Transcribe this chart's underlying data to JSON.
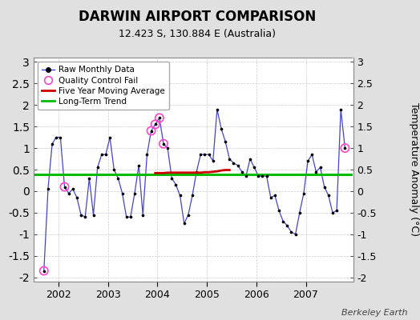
{
  "title": "DARWIN AIRPORT COMPARISON",
  "subtitle": "12.423 S, 130.884 E (Australia)",
  "ylabel": "Temperature Anomaly (°C)",
  "watermark": "Berkeley Earth",
  "ylim": [
    -2.1,
    3.1
  ],
  "xlim": [
    2001.5,
    2007.95
  ],
  "long_term_trend": 0.38,
  "bg_color": "#e0e0e0",
  "plot_bg_color": "#ffffff",
  "raw_line_color": "#4444cc",
  "raw_marker_color": "#000000",
  "qc_fail_color": "#ff44cc",
  "moving_avg_color": "#cc0000",
  "trend_color": "#00bb00",
  "raw_data": [
    [
      2001.708,
      -1.85
    ],
    [
      2001.792,
      0.05
    ],
    [
      2001.875,
      1.1
    ],
    [
      2001.958,
      1.25
    ],
    [
      2002.042,
      1.25
    ],
    [
      2002.125,
      0.1
    ],
    [
      2002.208,
      -0.05
    ],
    [
      2002.292,
      0.05
    ],
    [
      2002.375,
      -0.15
    ],
    [
      2002.458,
      -0.55
    ],
    [
      2002.542,
      -0.6
    ],
    [
      2002.625,
      0.3
    ],
    [
      2002.708,
      -0.55
    ],
    [
      2002.792,
      0.55
    ],
    [
      2002.875,
      0.85
    ],
    [
      2002.958,
      0.85
    ],
    [
      2003.042,
      1.25
    ],
    [
      2003.125,
      0.5
    ],
    [
      2003.208,
      0.3
    ],
    [
      2003.292,
      -0.05
    ],
    [
      2003.375,
      -0.6
    ],
    [
      2003.458,
      -0.6
    ],
    [
      2003.542,
      -0.05
    ],
    [
      2003.625,
      0.6
    ],
    [
      2003.708,
      -0.55
    ],
    [
      2003.792,
      0.85
    ],
    [
      2003.875,
      1.4
    ],
    [
      2003.958,
      1.55
    ],
    [
      2004.042,
      1.7
    ],
    [
      2004.125,
      1.1
    ],
    [
      2004.208,
      1.0
    ],
    [
      2004.292,
      0.3
    ],
    [
      2004.375,
      0.15
    ],
    [
      2004.458,
      -0.1
    ],
    [
      2004.542,
      -0.75
    ],
    [
      2004.625,
      -0.55
    ],
    [
      2004.708,
      -0.1
    ],
    [
      2004.792,
      0.45
    ],
    [
      2004.875,
      0.85
    ],
    [
      2004.958,
      0.85
    ],
    [
      2005.042,
      0.85
    ],
    [
      2005.125,
      0.7
    ],
    [
      2005.208,
      1.9
    ],
    [
      2005.292,
      1.45
    ],
    [
      2005.375,
      1.15
    ],
    [
      2005.458,
      0.75
    ],
    [
      2005.542,
      0.65
    ],
    [
      2005.625,
      0.6
    ],
    [
      2005.708,
      0.45
    ],
    [
      2005.792,
      0.35
    ],
    [
      2005.875,
      0.75
    ],
    [
      2005.958,
      0.55
    ],
    [
      2006.042,
      0.35
    ],
    [
      2006.125,
      0.35
    ],
    [
      2006.208,
      0.35
    ],
    [
      2006.292,
      -0.15
    ],
    [
      2006.375,
      -0.1
    ],
    [
      2006.458,
      -0.45
    ],
    [
      2006.542,
      -0.7
    ],
    [
      2006.625,
      -0.8
    ],
    [
      2006.708,
      -0.95
    ],
    [
      2006.792,
      -1.0
    ],
    [
      2006.875,
      -0.5
    ],
    [
      2006.958,
      -0.05
    ],
    [
      2007.042,
      0.7
    ],
    [
      2007.125,
      0.85
    ],
    [
      2007.208,
      0.45
    ],
    [
      2007.292,
      0.55
    ],
    [
      2007.375,
      0.1
    ],
    [
      2007.458,
      -0.1
    ],
    [
      2007.542,
      -0.5
    ],
    [
      2007.625,
      -0.45
    ],
    [
      2007.708,
      1.9
    ],
    [
      2007.792,
      1.0
    ]
  ],
  "qc_fail_points": [
    [
      2001.708,
      -1.85
    ],
    [
      2002.125,
      0.1
    ],
    [
      2003.875,
      1.4
    ],
    [
      2003.958,
      1.55
    ],
    [
      2004.042,
      1.7
    ],
    [
      2004.125,
      1.1
    ],
    [
      2007.792,
      1.0
    ]
  ],
  "moving_avg": [
    [
      2003.958,
      0.42
    ],
    [
      2004.042,
      0.42
    ],
    [
      2004.125,
      0.42
    ],
    [
      2004.208,
      0.43
    ],
    [
      2004.292,
      0.43
    ],
    [
      2004.375,
      0.43
    ],
    [
      2004.458,
      0.43
    ],
    [
      2004.542,
      0.43
    ],
    [
      2004.625,
      0.43
    ],
    [
      2004.708,
      0.43
    ],
    [
      2004.792,
      0.43
    ],
    [
      2004.875,
      0.43
    ],
    [
      2004.958,
      0.44
    ],
    [
      2005.042,
      0.44
    ],
    [
      2005.125,
      0.45
    ],
    [
      2005.208,
      0.46
    ],
    [
      2005.292,
      0.48
    ],
    [
      2005.375,
      0.49
    ],
    [
      2005.458,
      0.49
    ]
  ],
  "xticks": [
    2002,
    2003,
    2004,
    2005,
    2006,
    2007
  ],
  "yticks": [
    -2,
    -1.5,
    -1,
    -0.5,
    0,
    0.5,
    1,
    1.5,
    2,
    2.5,
    3
  ]
}
